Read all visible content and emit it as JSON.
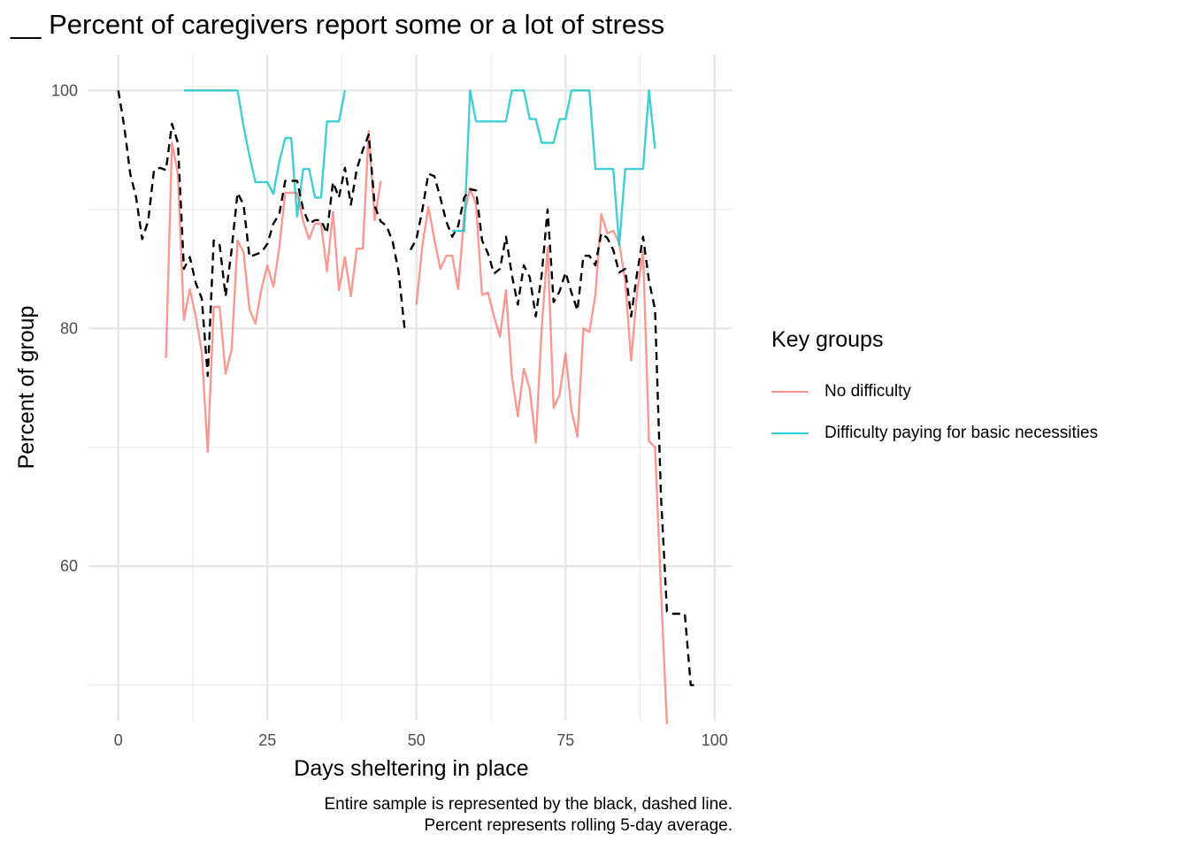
{
  "chart_data": {
    "type": "line",
    "title": "__ Percent of caregivers report some or a lot of stress",
    "xlabel": "Days sheltering in place",
    "ylabel": "Percent of group",
    "xlim": [
      -5,
      103
    ],
    "ylim": [
      47,
      103
    ],
    "x_ticks": [
      0,
      25,
      50,
      75,
      100
    ],
    "y_ticks": [
      60,
      80,
      100
    ],
    "grid": true,
    "legend": {
      "title": "Key groups",
      "placement": "right",
      "items": [
        {
          "label": "No difficulty",
          "color": "#F8766D"
        },
        {
          "label": "Difficulty paying for basic necessities",
          "color": "#00BFC4"
        }
      ]
    },
    "caption": [
      "Entire sample is represented by the black, dashed line.",
      "Percent represents rolling 5-day average."
    ],
    "series": [
      {
        "name": "No difficulty",
        "color": "#F8766D",
        "points": [
          [
            8,
            77.5
          ],
          [
            9,
            95.6
          ],
          [
            10,
            93
          ],
          [
            11,
            80.7
          ],
          [
            12,
            83.3
          ],
          [
            13,
            81
          ],
          [
            14,
            78
          ],
          [
            15,
            69.6
          ],
          [
            16,
            81.8
          ],
          [
            17,
            81.8
          ],
          [
            18,
            76.2
          ],
          [
            19,
            78.2
          ],
          [
            20,
            87.4
          ],
          [
            21,
            86.4
          ],
          [
            22,
            81.6
          ],
          [
            23,
            80.4
          ],
          [
            24,
            83.3
          ],
          [
            25,
            85.3
          ],
          [
            26,
            83.5
          ],
          [
            27,
            86.8
          ],
          [
            28,
            91.4
          ],
          [
            29,
            91.4
          ],
          [
            30,
            91.4
          ],
          [
            31,
            89
          ],
          [
            32,
            87.5
          ],
          [
            33,
            88.8
          ],
          [
            34,
            88.8
          ],
          [
            35,
            84.8
          ],
          [
            36,
            89.8
          ],
          [
            37,
            83.2
          ],
          [
            38,
            86
          ],
          [
            39,
            82.7
          ],
          [
            40,
            86.7
          ],
          [
            41,
            86.7
          ],
          [
            42,
            96.6
          ],
          [
            43,
            89.1
          ],
          [
            44,
            92.4
          ],
          null,
          [
            50,
            82
          ],
          [
            51,
            87
          ],
          [
            52,
            90.2
          ],
          [
            53,
            87.5
          ],
          [
            54,
            85
          ],
          [
            55,
            86.1
          ],
          [
            56,
            86.1
          ],
          [
            57,
            83.3
          ],
          [
            58,
            89.5
          ],
          [
            59,
            91.8
          ],
          [
            60,
            90.4
          ],
          [
            61,
            82.8
          ],
          [
            62,
            83
          ],
          [
            63,
            81
          ],
          [
            64,
            79.3
          ],
          [
            65,
            83.2
          ],
          [
            66,
            76
          ],
          [
            67,
            72.6
          ],
          [
            68,
            76.6
          ],
          [
            69,
            74.9
          ],
          [
            70,
            70.4
          ],
          [
            71,
            80
          ],
          [
            72,
            86.8
          ],
          [
            73,
            73.3
          ],
          [
            74,
            74.4
          ],
          [
            75,
            77.9
          ],
          [
            76,
            73.1
          ],
          [
            77,
            70.9
          ],
          [
            78,
            80
          ],
          [
            79,
            79.7
          ],
          [
            80,
            82.8
          ],
          [
            81,
            89.6
          ],
          [
            82,
            88
          ],
          [
            83,
            88.2
          ],
          [
            84,
            87.2
          ],
          [
            85,
            84
          ],
          [
            86,
            77.3
          ],
          [
            87,
            83
          ],
          [
            88,
            86.5
          ],
          [
            89,
            70.5
          ],
          [
            90,
            70
          ],
          [
            91,
            58
          ],
          [
            92,
            46.7
          ]
        ]
      },
      {
        "name": "Difficulty paying for basic necessities",
        "color": "#00BFC4",
        "points": [
          [
            11,
            100
          ],
          [
            20,
            100
          ],
          [
            21,
            97
          ],
          [
            22,
            94.5
          ],
          [
            23,
            92.3
          ],
          [
            24,
            92.3
          ],
          [
            25,
            92.3
          ],
          [
            26,
            91.3
          ],
          [
            27,
            94
          ],
          [
            28,
            96
          ],
          [
            29,
            96
          ],
          [
            30,
            89.4
          ],
          [
            31,
            93.4
          ],
          [
            32,
            93.4
          ],
          [
            33,
            91
          ],
          [
            34,
            91
          ],
          [
            35,
            97.4
          ],
          [
            36,
            97.4
          ],
          [
            37,
            97.4
          ],
          [
            38,
            100
          ],
          null,
          [
            56,
            88.2
          ],
          [
            58,
            88.2
          ],
          [
            59,
            100
          ],
          [
            60,
            97.4
          ],
          [
            61,
            97.4
          ],
          [
            62,
            97.4
          ],
          [
            63,
            97.4
          ],
          [
            64,
            97.4
          ],
          [
            65,
            97.4
          ],
          [
            66,
            100
          ],
          [
            67,
            100
          ],
          [
            68,
            100
          ],
          [
            69,
            97.6
          ],
          [
            70,
            97.6
          ],
          [
            71,
            95.6
          ],
          [
            72,
            95.6
          ],
          [
            73,
            95.6
          ],
          [
            74,
            97.6
          ],
          [
            75,
            97.6
          ],
          [
            76,
            100
          ],
          [
            77,
            100
          ],
          [
            78,
            100
          ],
          [
            79,
            100
          ],
          [
            80,
            93.4
          ],
          [
            81,
            93.4
          ],
          [
            82,
            93.4
          ],
          [
            83,
            93.4
          ],
          [
            84,
            87
          ],
          [
            85,
            93.4
          ],
          [
            86,
            93.4
          ],
          [
            87,
            93.4
          ],
          [
            88,
            93.4
          ],
          [
            89,
            100
          ],
          [
            90,
            95.1
          ]
        ]
      },
      {
        "name": "",
        "color": "#000000",
        "dashed": true,
        "points": [
          [
            0,
            100
          ],
          [
            1,
            97
          ],
          [
            2,
            93
          ],
          [
            3,
            91
          ],
          [
            4,
            87.5
          ],
          [
            5,
            89
          ],
          [
            6,
            93.3
          ],
          [
            7,
            93.5
          ],
          [
            8,
            93.3
          ],
          [
            9,
            97.2
          ],
          [
            10,
            95.6
          ],
          [
            11,
            85
          ],
          [
            12,
            86
          ],
          [
            13,
            83.8
          ],
          [
            14,
            82.5
          ],
          [
            15,
            76
          ],
          [
            16,
            87.4
          ],
          [
            17,
            87
          ],
          [
            18,
            82.7
          ],
          [
            19,
            86.6
          ],
          [
            20,
            91.4
          ],
          [
            21,
            90.4
          ],
          [
            22,
            86
          ],
          [
            23,
            86.2
          ],
          [
            24,
            86.4
          ],
          [
            25,
            87.1
          ],
          [
            26,
            88.8
          ],
          [
            27,
            89.6
          ],
          [
            28,
            92.4
          ],
          [
            29,
            92.4
          ],
          [
            30,
            92.4
          ],
          [
            31,
            90
          ],
          [
            32,
            88.8
          ],
          [
            33,
            89.1
          ],
          [
            34,
            89.1
          ],
          [
            35,
            88
          ],
          [
            36,
            92.3
          ],
          [
            37,
            91
          ],
          [
            38,
            93.5
          ],
          [
            39,
            90.4
          ],
          [
            40,
            93.4
          ],
          [
            41,
            95
          ],
          [
            42,
            96.3
          ],
          [
            43,
            90.3
          ],
          [
            44,
            89
          ],
          [
            45,
            88.6
          ],
          [
            46,
            87.3
          ],
          [
            47,
            84.8
          ],
          [
            48,
            80
          ],
          null,
          [
            49,
            86.6
          ],
          [
            50,
            87.5
          ],
          [
            51,
            90
          ],
          [
            52,
            93
          ],
          [
            53,
            92.8
          ],
          [
            54,
            91
          ],
          [
            55,
            89
          ],
          [
            56,
            87.7
          ],
          [
            57,
            88.6
          ],
          [
            58,
            91
          ],
          [
            59,
            91.7
          ],
          [
            60,
            91.6
          ],
          [
            61,
            87.4
          ],
          [
            62,
            86.3
          ],
          [
            63,
            84.6
          ],
          [
            64,
            85
          ],
          [
            65,
            87.7
          ],
          [
            66,
            84.5
          ],
          [
            67,
            82
          ],
          [
            68,
            85.3
          ],
          [
            69,
            84.3
          ],
          [
            70,
            81
          ],
          [
            71,
            84.5
          ],
          [
            72,
            90
          ],
          [
            73,
            82.2
          ],
          [
            74,
            83.1
          ],
          [
            75,
            84.7
          ],
          [
            76,
            83
          ],
          [
            77,
            81.5
          ],
          [
            78,
            86.1
          ],
          [
            79,
            86.1
          ],
          [
            80,
            85.3
          ],
          [
            81,
            88
          ],
          [
            82,
            87.6
          ],
          [
            83,
            86.6
          ],
          [
            84,
            84.7
          ],
          [
            85,
            85
          ],
          [
            86,
            81
          ],
          [
            87,
            84.6
          ],
          [
            88,
            87.7
          ],
          [
            89,
            84
          ],
          [
            90,
            81.6
          ],
          [
            91,
            66
          ],
          [
            92,
            56.2
          ],
          [
            93,
            56
          ],
          [
            94,
            56
          ],
          [
            95,
            56
          ],
          [
            96,
            50
          ],
          [
            97,
            50
          ]
        ]
      }
    ]
  }
}
